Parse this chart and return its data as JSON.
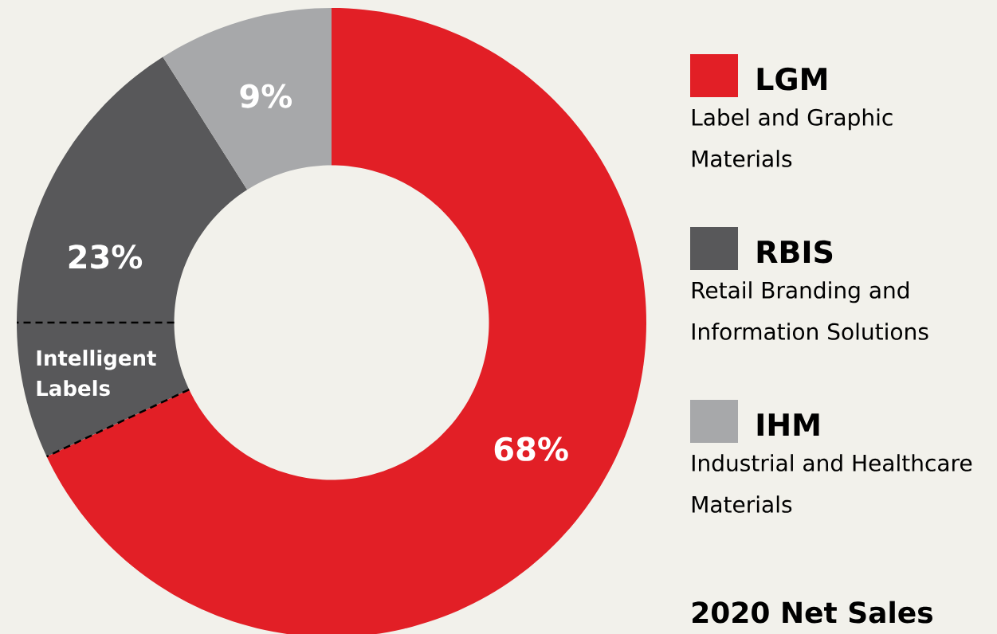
{
  "chart_data": {
    "type": "donut",
    "title": "2020 Net Sales",
    "categories": [
      "LGM",
      "RBIS",
      "IHM"
    ],
    "values": [
      68,
      23,
      9
    ],
    "colors": [
      "#e21f26",
      "#58585a",
      "#a7a8aa"
    ],
    "value_labels": [
      "68%",
      "23%",
      "9%"
    ],
    "legend": "right",
    "annotations": [
      "Label and Graphic Materials",
      "Retail Branding and Information Solutions",
      "Industrial and Healthcare Materials",
      "Intelligent Labels"
    ]
  }
}
